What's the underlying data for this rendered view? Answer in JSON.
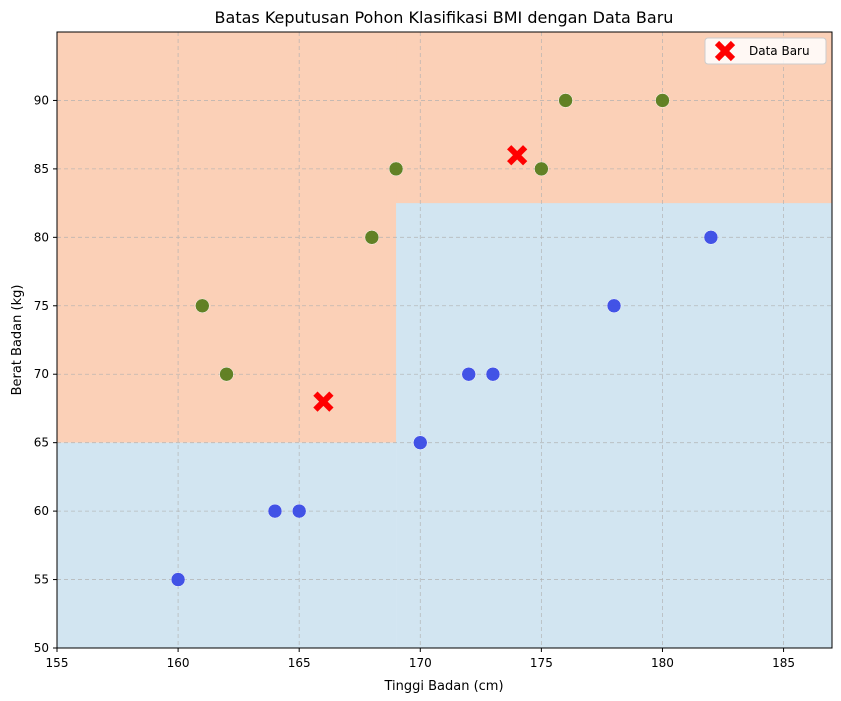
{
  "chart_data": {
    "type": "scatter",
    "title": "Batas Keputusan Pohon Klasifikasi BMI dengan Data Baru",
    "xlabel": "Tinggi Badan (cm)",
    "ylabel": "Berat Badan (kg)",
    "xlim": [
      155,
      187
    ],
    "ylim": [
      50,
      95
    ],
    "xticks": [
      155,
      160,
      165,
      170,
      175,
      180,
      185
    ],
    "yticks": [
      50,
      55,
      60,
      65,
      70,
      75,
      80,
      85,
      90
    ],
    "grid": true,
    "legend_position": "top-right",
    "decision_regions": [
      {
        "color": "#fbd0b7",
        "x": [
          155,
          187
        ],
        "y": [
          65,
          95
        ]
      },
      {
        "color": "#fbd0b7",
        "x": [
          169,
          187
        ],
        "y": [
          82.5,
          95
        ]
      },
      {
        "color": "#d2e5f1",
        "x": [
          155,
          169
        ],
        "y": [
          50,
          65
        ]
      },
      {
        "color": "#d2e5f1",
        "x": [
          169,
          187
        ],
        "y": [
          50,
          82.5
        ]
      }
    ],
    "series": [
      {
        "color": "#5a7d1e",
        "marker": "circle",
        "points": [
          [
            161,
            75
          ],
          [
            162,
            70
          ],
          [
            168,
            80
          ],
          [
            169,
            85
          ],
          [
            175,
            85
          ],
          [
            176,
            90
          ],
          [
            180,
            90
          ]
        ]
      },
      {
        "color": "#3b4ce6",
        "marker": "circle",
        "points": [
          [
            160,
            55
          ],
          [
            164,
            60
          ],
          [
            165,
            60
          ],
          [
            170,
            65
          ],
          [
            172,
            70
          ],
          [
            173,
            70
          ],
          [
            178,
            75
          ],
          [
            182,
            80
          ]
        ]
      },
      {
        "name": "Data Baru",
        "color": "#ff0000",
        "marker": "x",
        "points": [
          [
            166,
            68
          ],
          [
            174,
            86
          ]
        ]
      }
    ]
  }
}
